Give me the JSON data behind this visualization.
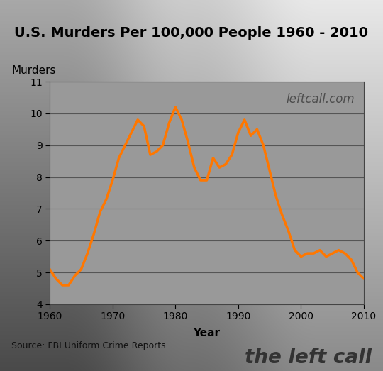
{
  "title": "U.S. Murders Per 100,000 People 1960 - 2010",
  "xlabel": "Year",
  "ylabel": "Murders",
  "watermark": "leftcall.com",
  "source_text": "Source: FBI Uniform Crime Reports",
  "brand_text": "the left call",
  "years": [
    1960,
    1961,
    1962,
    1963,
    1964,
    1965,
    1966,
    1967,
    1968,
    1969,
    1970,
    1971,
    1972,
    1973,
    1974,
    1975,
    1976,
    1977,
    1978,
    1979,
    1980,
    1981,
    1982,
    1983,
    1984,
    1985,
    1986,
    1987,
    1988,
    1989,
    1990,
    1991,
    1992,
    1993,
    1994,
    1995,
    1996,
    1997,
    1998,
    1999,
    2000,
    2001,
    2002,
    2003,
    2004,
    2005,
    2006,
    2007,
    2008,
    2009,
    2010
  ],
  "values": [
    5.1,
    4.8,
    4.6,
    4.6,
    4.9,
    5.1,
    5.6,
    6.2,
    6.9,
    7.3,
    7.9,
    8.6,
    9.0,
    9.4,
    9.8,
    9.6,
    8.7,
    8.8,
    9.0,
    9.7,
    10.2,
    9.8,
    9.1,
    8.3,
    7.9,
    7.9,
    8.6,
    8.3,
    8.4,
    8.7,
    9.4,
    9.8,
    9.3,
    9.5,
    9.0,
    8.2,
    7.4,
    6.8,
    6.3,
    5.7,
    5.5,
    5.6,
    5.6,
    5.7,
    5.5,
    5.6,
    5.7,
    5.6,
    5.4,
    5.0,
    4.8
  ],
  "line_color": "#FF7700",
  "line_width": 2.5,
  "plot_bg_color": "#999999",
  "ylim": [
    4,
    11
  ],
  "yticks": [
    4,
    5,
    6,
    7,
    8,
    9,
    10,
    11
  ],
  "xlim": [
    1960,
    2010
  ],
  "xticks": [
    1960,
    1970,
    1980,
    1990,
    2000,
    2010
  ],
  "grid_color": "#555555",
  "title_fontsize": 14,
  "axis_label_fontsize": 11,
  "tick_fontsize": 10,
  "watermark_fontsize": 12,
  "source_fontsize": 9,
  "brand_fontsize": 20,
  "bg_top": "#a8cce8",
  "bg_bottom": "#4a6e8a"
}
